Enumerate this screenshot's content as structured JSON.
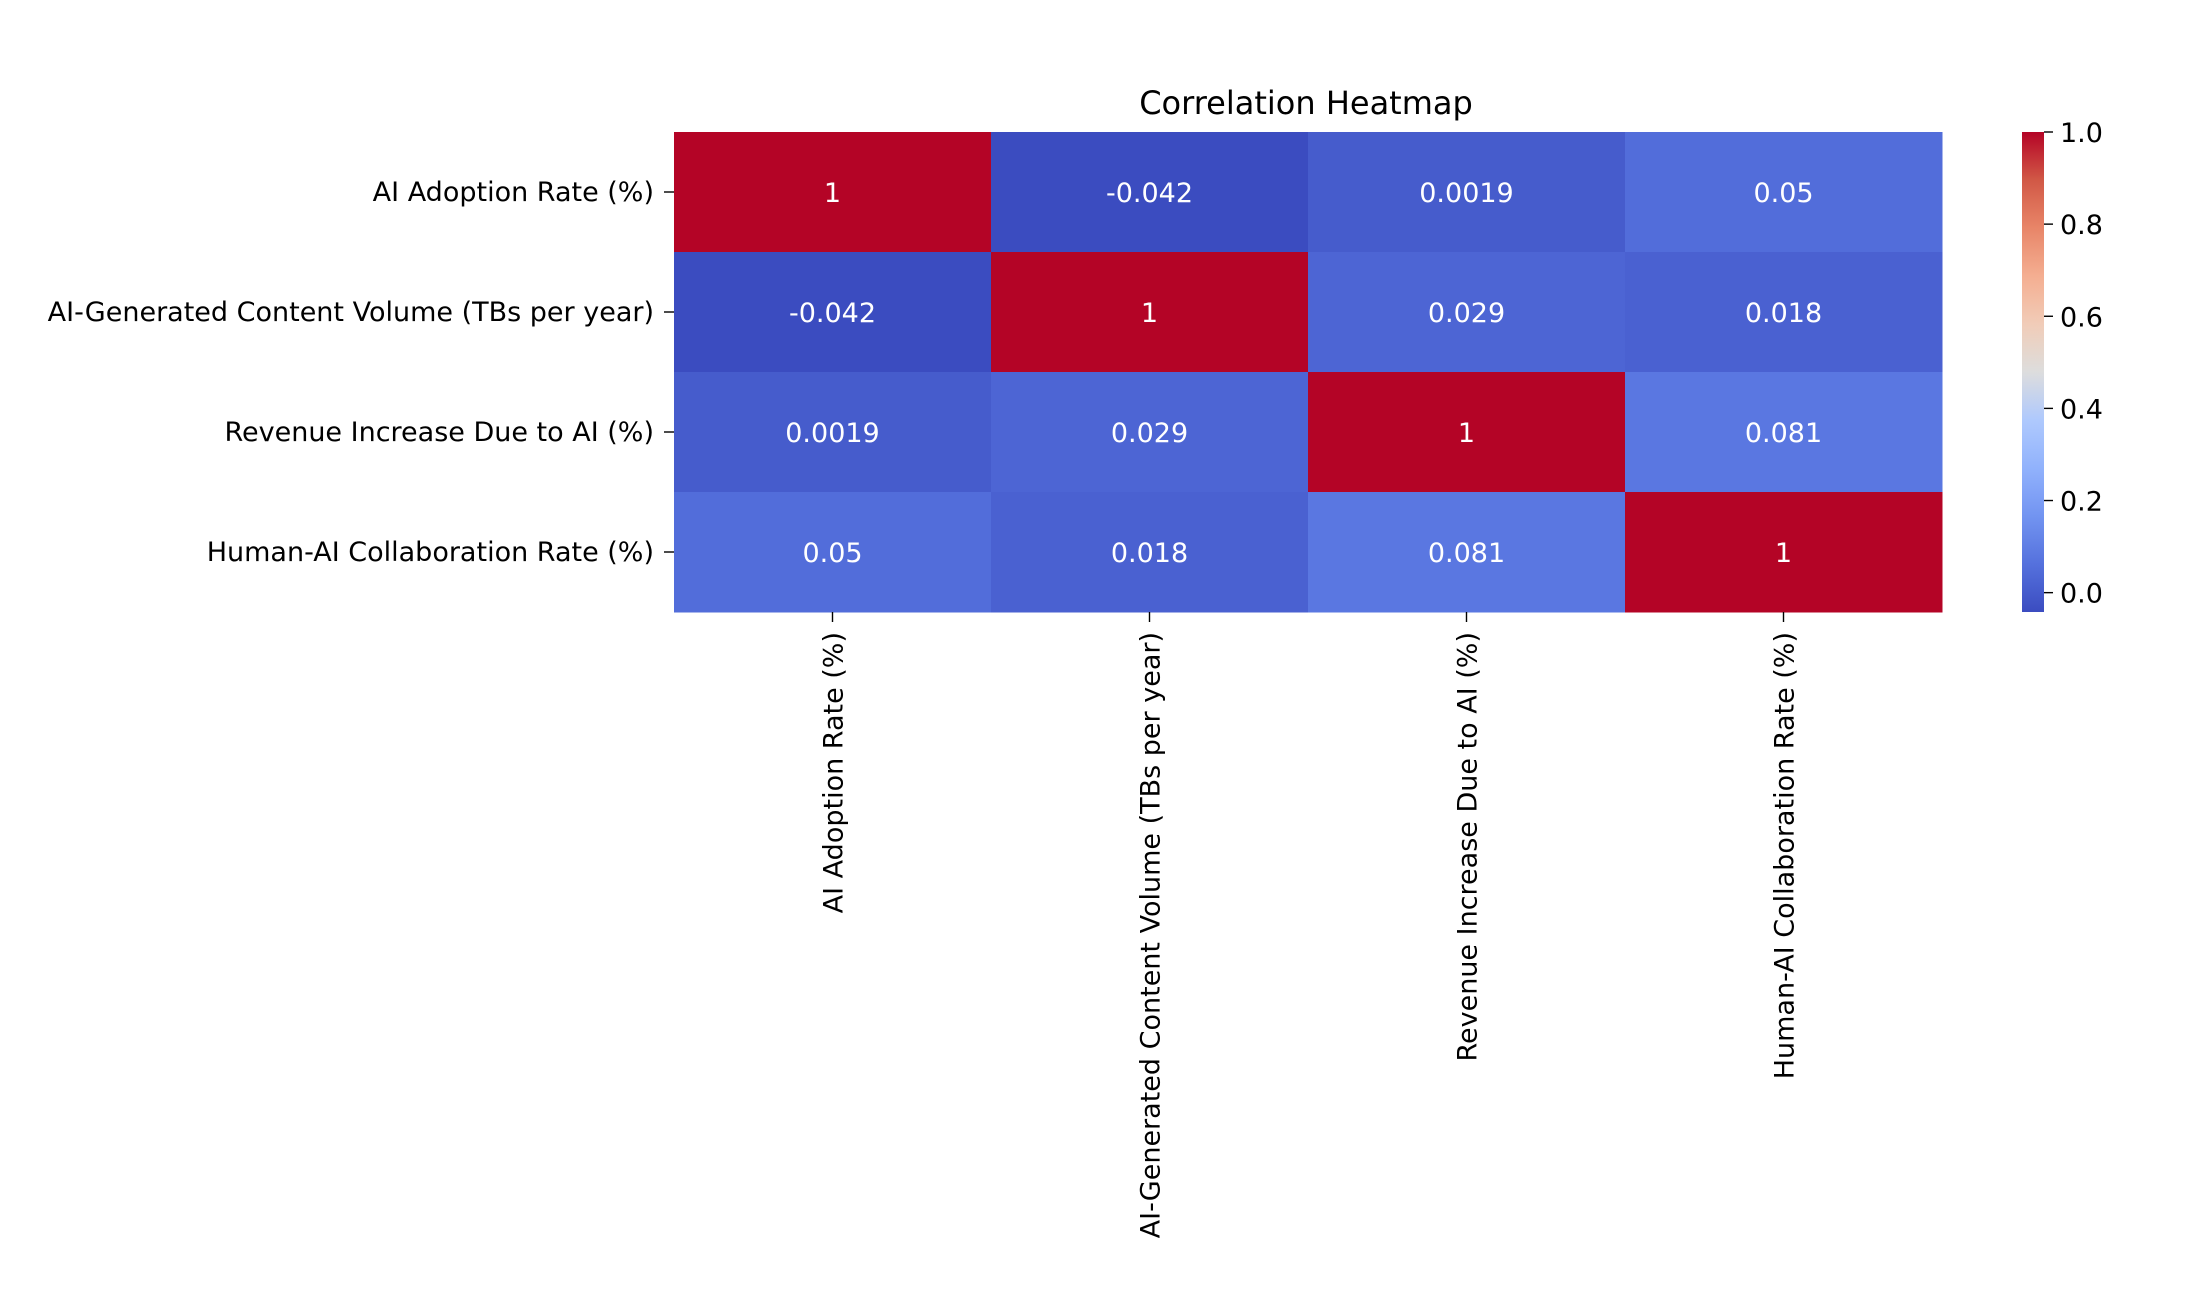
{
  "chart_data": {
    "type": "heatmap",
    "title": "Correlation Heatmap",
    "row_labels": [
      "AI Adoption Rate (%)",
      "AI-Generated Content Volume (TBs per year)",
      "Revenue Increase Due to AI (%)",
      "Human-AI Collaboration Rate (%)"
    ],
    "col_labels": [
      "AI Adoption Rate (%)",
      "AI-Generated Content Volume (TBs per year)",
      "Revenue Increase Due to AI (%)",
      "Human-AI Collaboration Rate (%)"
    ],
    "values": [
      [
        1,
        -0.042,
        0.0019,
        0.05
      ],
      [
        -0.042,
        1,
        0.029,
        0.018
      ],
      [
        0.0019,
        0.029,
        1,
        0.081
      ],
      [
        0.05,
        0.018,
        0.081,
        1
      ]
    ],
    "annotations": [
      [
        "1",
        "-0.042",
        "0.0019",
        "0.05"
      ],
      [
        "-0.042",
        "1",
        "0.029",
        "0.018"
      ],
      [
        "0.0019",
        "0.029",
        "1",
        "0.081"
      ],
      [
        "0.05",
        "0.018",
        "0.081",
        "1"
      ]
    ],
    "colormap": "coolwarm",
    "vmin": -0.042,
    "vmax": 1,
    "colorbar_ticks": [
      0.0,
      0.2,
      0.4,
      0.6,
      0.8,
      1.0
    ],
    "colorbar_tick_labels": [
      "0.0",
      "0.2",
      "0.4",
      "0.6",
      "0.8",
      "1.0"
    ],
    "grid": false,
    "legend": "colorbar-right"
  }
}
